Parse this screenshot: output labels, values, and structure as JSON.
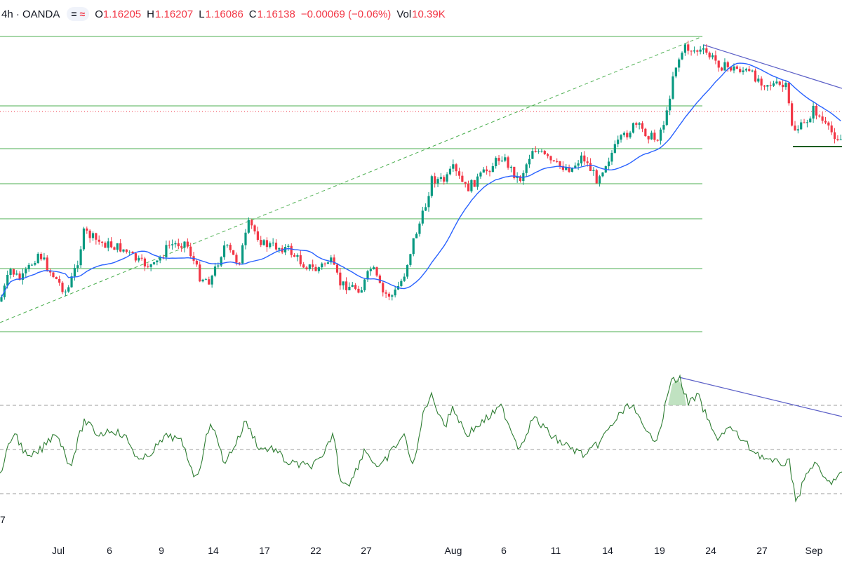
{
  "legend": {
    "symbol": "4h · OANDA",
    "o_label": "O",
    "o_value": "1.16205",
    "h_label": "H",
    "h_value": "1.16207",
    "l_label": "L",
    "l_value": "1.16086",
    "c_label": "C",
    "c_value": "1.16138",
    "change": "−0.00069 (−0.06%)",
    "vol_label": "Vol",
    "vol_value": "10.39K",
    "badge_icon": "equals-wave-icon"
  },
  "colors": {
    "up": "#089981",
    "down": "#f23645",
    "ma": "#2962ff",
    "levels": "#4caf50",
    "trendline": "#5b5fc7",
    "oscillator": "#2e7d32"
  },
  "chart_data": [
    {
      "type": "candlestick",
      "title": "",
      "x_ticks": [
        "Jul",
        "6",
        "9",
        "14",
        "17",
        "22",
        "27",
        "Aug",
        "6",
        "11",
        "14",
        "19",
        "24",
        "27",
        "Sep"
      ],
      "moving_average": true,
      "horizontal_levels": 8,
      "grid": false
    },
    {
      "type": "line",
      "title": "",
      "reference_lines": 3,
      "bottom_axis_fragment": "7"
    }
  ],
  "axis": {
    "ticks": [
      "Jul",
      "6",
      "9",
      "14",
      "17",
      "22",
      "27",
      "Aug",
      "6",
      "11",
      "14",
      "19",
      "24",
      "27",
      "Sep"
    ],
    "osc_fragment": "7"
  }
}
